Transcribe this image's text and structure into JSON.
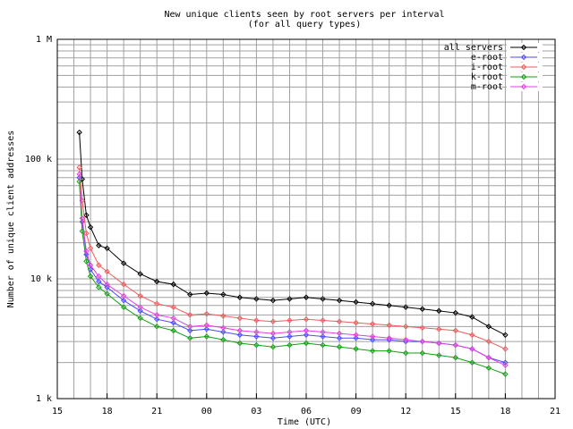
{
  "chart_data": {
    "type": "line",
    "title": "New unique clients seen by root servers per interval",
    "subtitle": "(for all query types)",
    "x_label": "Time (UTC)",
    "y_label": "Number of unique client addresses",
    "log_y": true,
    "grid": true,
    "legend": "top-right",
    "x": [
      16.33,
      16.5,
      16.75,
      17,
      17.5,
      18,
      19,
      20,
      21,
      22,
      23,
      24,
      25,
      26,
      27,
      28,
      29,
      30,
      31,
      32,
      33,
      34,
      35,
      36,
      37,
      38,
      39,
      40,
      41,
      42
    ],
    "xlim": [
      15,
      45
    ],
    "xticks": [
      15,
      18,
      21,
      {
        "value": 24,
        "label": "00"
      },
      {
        "value": 27,
        "label": "03"
      },
      {
        "value": 30,
        "label": "06"
      },
      {
        "value": 33,
        "label": "09"
      },
      {
        "value": 36,
        "label": "12"
      },
      {
        "value": 39,
        "label": "15"
      },
      {
        "value": 42,
        "label": "18"
      },
      {
        "value": 45,
        "label": "21"
      }
    ],
    "ylim": [
      1000,
      1000000
    ],
    "yticks": [
      {
        "value": 1000,
        "label": "1 k"
      },
      {
        "value": 10000,
        "label": "10 k"
      },
      {
        "value": 100000,
        "label": "100 k"
      },
      {
        "value": 1000000,
        "label": "1 M"
      }
    ],
    "series": [
      {
        "name": "all servers",
        "color": "#000000",
        "values": [
          167000,
          68000,
          34000,
          27000,
          19000,
          18000,
          13500,
          11000,
          9500,
          9000,
          7400,
          7600,
          7400,
          7000,
          6800,
          6600,
          6800,
          7000,
          6800,
          6600,
          6400,
          6200,
          6000,
          5800,
          5600,
          5400,
          5200,
          4800,
          4000,
          3400
        ]
      },
      {
        "name": "e-root",
        "color": "#4a4aff",
        "values": [
          70000,
          30000,
          16000,
          12000,
          9500,
          8500,
          6600,
          5400,
          4600,
          4300,
          3700,
          3800,
          3600,
          3400,
          3300,
          3200,
          3300,
          3400,
          3300,
          3200,
          3200,
          3100,
          3100,
          3000,
          3000,
          2900,
          2800,
          2600,
          2200,
          2000
        ]
      },
      {
        "name": "i-root",
        "color": "#f05a5a",
        "values": [
          85000,
          45000,
          24000,
          18000,
          13000,
          11500,
          9000,
          7200,
          6200,
          5800,
          5000,
          5100,
          4900,
          4700,
          4500,
          4400,
          4500,
          4600,
          4500,
          4400,
          4300,
          4200,
          4100,
          4000,
          3900,
          3800,
          3700,
          3400,
          3000,
          2600
        ]
      },
      {
        "name": "k-root",
        "color": "#10a010",
        "values": [
          65000,
          25000,
          14000,
          10500,
          8500,
          7500,
          5800,
          4700,
          4000,
          3700,
          3200,
          3300,
          3100,
          2900,
          2800,
          2700,
          2800,
          2900,
          2800,
          2700,
          2600,
          2500,
          2500,
          2400,
          2400,
          2300,
          2200,
          2000,
          1800,
          1600
        ]
      },
      {
        "name": "m-root",
        "color": "#e040e0",
        "values": [
          75000,
          32000,
          17000,
          13000,
          10500,
          9000,
          7200,
          5800,
          5000,
          4700,
          4000,
          4100,
          3900,
          3700,
          3600,
          3500,
          3600,
          3700,
          3600,
          3500,
          3400,
          3300,
          3200,
          3100,
          3000,
          2900,
          2800,
          2600,
          2200,
          1900
        ]
      }
    ]
  }
}
